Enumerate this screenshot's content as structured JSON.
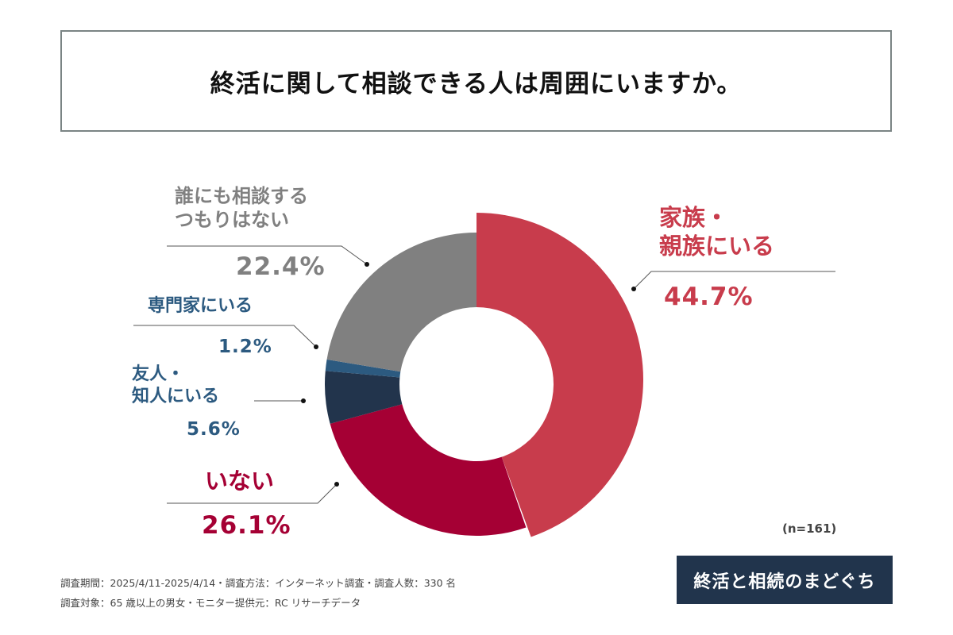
{
  "chart_data": {
    "type": "pie",
    "variant": "donut",
    "title": "終活に関して相談できる人は周囲にいますか。",
    "categories": [
      "家族・親族にいる",
      "いない",
      "友人・知人にいる",
      "専門家にいる",
      "誰にも相談するつもりはない"
    ],
    "values": [
      44.7,
      26.1,
      5.6,
      1.2,
      22.4
    ],
    "value_labels": [
      "44.7%",
      "26.1%",
      "5.6%",
      "1.2%",
      "22.4%"
    ],
    "label_lines": [
      [
        "家族・",
        "親族にいる"
      ],
      [
        "いない"
      ],
      [
        "友人・",
        "知人にいる"
      ],
      [
        "専門家にいる"
      ],
      [
        "誰にも相談する",
        "つもりはない"
      ]
    ],
    "colors": [
      "#c83c4c",
      "#a50034",
      "#22344c",
      "#2c5a80",
      "#808080"
    ],
    "label_colors": [
      "#c83c4c",
      "#a50034",
      "#2c5a80",
      "#2c5a80",
      "#808080"
    ],
    "start": "top",
    "direction": "clockwise",
    "highlighted": "家族・親族にいる",
    "sample_size": "(n=161)"
  },
  "footer": {
    "line1": "調査期間：2025/4/11-2025/4/14・調査方法：インターネット調査・調査人数：330 名",
    "line2": "調査対象：65 歳以上の男女・モニター提供元：RC リサーチデータ"
  },
  "logo": {
    "text": "終活と相続のまどぐち"
  }
}
